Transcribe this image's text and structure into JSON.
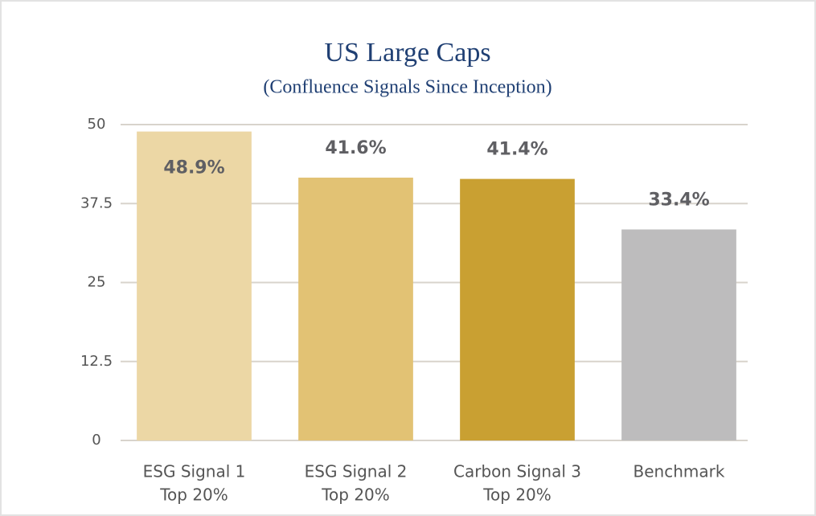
{
  "chart_data": {
    "type": "bar",
    "title": "US Large Caps",
    "subtitle": "(Confluence Signals Since Inception)",
    "categories": [
      [
        "ESG Signal 1",
        "Top 20%"
      ],
      [
        "ESG Signal 2",
        "Top 20%"
      ],
      [
        "Carbon Signal 3",
        "Top 20%"
      ],
      [
        "Benchmark"
      ]
    ],
    "values": [
      48.9,
      41.6,
      41.4,
      33.4
    ],
    "value_labels": [
      "48.9%",
      "41.6%",
      "41.4%",
      "33.4%"
    ],
    "colors": [
      "#ecd7a5",
      "#e2c274",
      "#c9a032",
      "#bdbcbd"
    ],
    "ylim": [
      0,
      50
    ],
    "yticks": [
      0,
      12.5,
      25,
      37.5,
      50
    ],
    "grid": true
  }
}
